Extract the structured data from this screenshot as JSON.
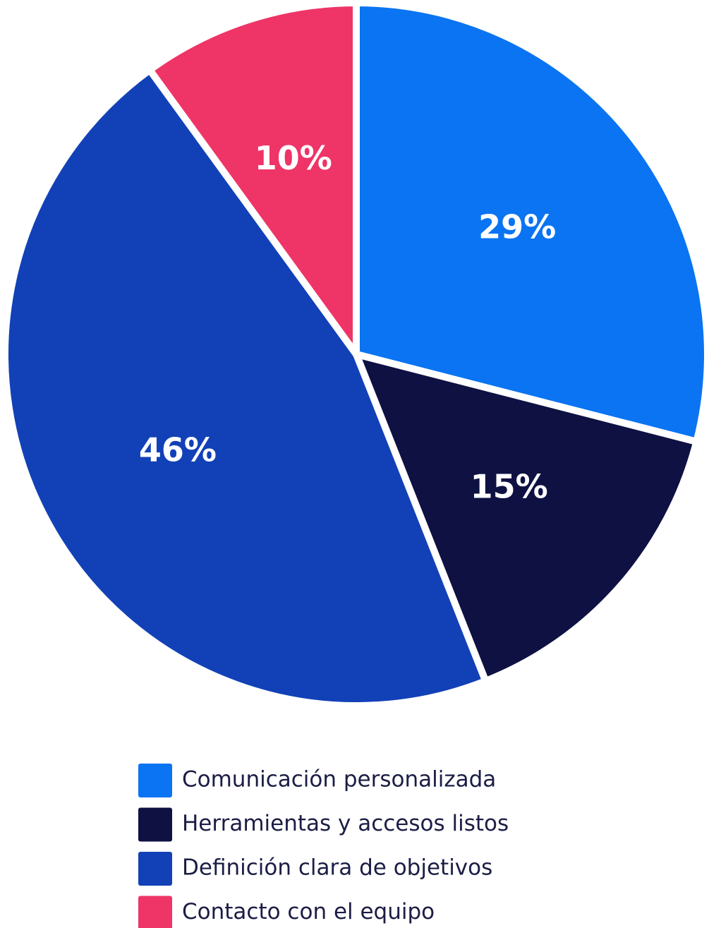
{
  "chart_data": {
    "type": "pie",
    "categories": [
      "Comunicación personalizada",
      "Herramientas y accesos listos",
      "Definición clara de objetivos",
      "Contacto con el equipo"
    ],
    "values": [
      29,
      15,
      46,
      10
    ],
    "value_labels": [
      "29%",
      "15%",
      "46%",
      "10%"
    ],
    "colors": [
      "#0a74f2",
      "#0e1142",
      "#1241b7",
      "#ef3468"
    ]
  }
}
